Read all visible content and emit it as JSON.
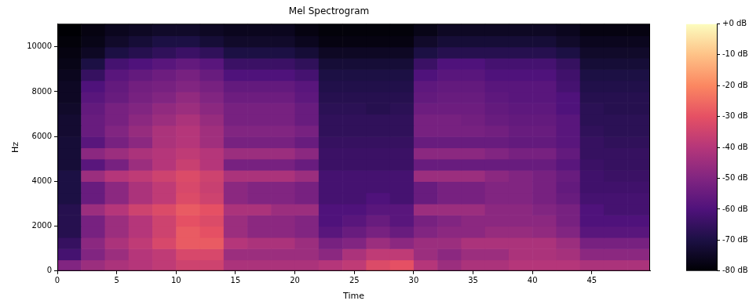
{
  "chart_data": {
    "type": "heatmap",
    "title": "Mel Spectrogram",
    "x_label": "Time",
    "y_label": "Hz",
    "xlim": [
      0,
      49.9
    ],
    "xticks": [
      0,
      5,
      10,
      15,
      20,
      25,
      30,
      35,
      40,
      45
    ],
    "ylim": [
      0,
      11025
    ],
    "yticks": [
      0,
      2000,
      4000,
      6000,
      8000,
      10000
    ],
    "grid": false,
    "x_edges": [
      0,
      2,
      4,
      6,
      8,
      10,
      12,
      14,
      16,
      18,
      20,
      22,
      24,
      26,
      28,
      30,
      32,
      34,
      36,
      38,
      40,
      42,
      44,
      46,
      48,
      49.9
    ],
    "y_edges": [
      0,
      500,
      1000,
      1500,
      2000,
      2500,
      3000,
      3500,
      4000,
      4500,
      5000,
      5500,
      6000,
      6500,
      7000,
      7500,
      8000,
      8500,
      9000,
      9500,
      10000,
      10500,
      11025
    ],
    "values": [
      [
        -50,
        -45,
        -42,
        -40,
        -38,
        -35,
        -35,
        -42,
        -42,
        -42,
        -42,
        -40,
        -38,
        -32,
        -30,
        -40,
        -45,
        -42,
        -42,
        -40,
        -40,
        -40,
        -42,
        -42,
        -42
      ],
      [
        -62,
        -50,
        -45,
        -40,
        -38,
        -33,
        -33,
        -45,
        -45,
        -45,
        -45,
        -48,
        -42,
        -38,
        -38,
        -45,
        -48,
        -45,
        -45,
        -42,
        -42,
        -43,
        -48,
        -48,
        -48
      ],
      [
        -65,
        -48,
        -42,
        -38,
        -33,
        -28,
        -28,
        -40,
        -42,
        -42,
        -45,
        -52,
        -50,
        -45,
        -48,
        -45,
        -45,
        -42,
        -42,
        -42,
        -42,
        -45,
        -52,
        -52,
        -52
      ],
      [
        -68,
        -52,
        -45,
        -40,
        -35,
        -28,
        -30,
        -45,
        -48,
        -48,
        -50,
        -58,
        -55,
        -52,
        -55,
        -50,
        -48,
        -48,
        -46,
        -46,
        -47,
        -50,
        -58,
        -58,
        -58
      ],
      [
        -68,
        -52,
        -45,
        -40,
        -35,
        -30,
        -32,
        -45,
        -48,
        -48,
        -50,
        -60,
        -58,
        -55,
        -58,
        -52,
        -50,
        -48,
        -48,
        -48,
        -48,
        -52,
        -60,
        -60,
        -60
      ],
      [
        -68,
        -45,
        -40,
        -35,
        -32,
        -28,
        -30,
        -42,
        -42,
        -45,
        -45,
        -60,
        -60,
        -58,
        -58,
        -45,
        -45,
        -45,
        -48,
        -48,
        -50,
        -52,
        -60,
        -62,
        -62
      ],
      [
        -70,
        -55,
        -48,
        -42,
        -38,
        -32,
        -35,
        -48,
        -50,
        -50,
        -52,
        -62,
        -62,
        -60,
        -62,
        -55,
        -52,
        -52,
        -50,
        -50,
        -52,
        -55,
        -62,
        -62,
        -62
      ],
      [
        -70,
        -55,
        -48,
        -42,
        -38,
        -33,
        -36,
        -48,
        -50,
        -50,
        -52,
        -62,
        -62,
        -62,
        -62,
        -55,
        -52,
        -52,
        -50,
        -50,
        -52,
        -56,
        -63,
        -63,
        -63
      ],
      [
        -70,
        -45,
        -40,
        -38,
        -35,
        -32,
        -35,
        -42,
        -42,
        -42,
        -45,
        -62,
        -62,
        -62,
        -62,
        -45,
        -45,
        -45,
        -48,
        -50,
        -52,
        -55,
        -63,
        -64,
        -64
      ],
      [
        -72,
        -58,
        -52,
        -45,
        -40,
        -36,
        -40,
        -52,
        -52,
        -52,
        -55,
        -64,
        -64,
        -64,
        -64,
        -55,
        -55,
        -55,
        -55,
        -55,
        -55,
        -58,
        -64,
        -65,
        -65
      ],
      [
        -72,
        -48,
        -45,
        -42,
        -40,
        -38,
        -40,
        -45,
        -45,
        -45,
        -48,
        -64,
        -64,
        -64,
        -64,
        -48,
        -48,
        -48,
        -50,
        -52,
        -52,
        -56,
        -65,
        -65,
        -65
      ],
      [
        -72,
        -58,
        -52,
        -48,
        -42,
        -40,
        -44,
        -52,
        -52,
        -52,
        -55,
        -65,
        -65,
        -65,
        -65,
        -55,
        -55,
        -55,
        -55,
        -56,
        -56,
        -58,
        -65,
        -66,
        -66
      ],
      [
        -73,
        -55,
        -50,
        -46,
        -42,
        -40,
        -44,
        -50,
        -50,
        -50,
        -52,
        -66,
        -66,
        -66,
        -66,
        -52,
        -52,
        -52,
        -53,
        -55,
        -55,
        -58,
        -66,
        -67,
        -67
      ],
      [
        -73,
        -55,
        -52,
        -48,
        -45,
        -42,
        -46,
        -52,
        -52,
        -52,
        -55,
        -66,
        -66,
        -66,
        -66,
        -52,
        -52,
        -53,
        -55,
        -56,
        -56,
        -58,
        -67,
        -67,
        -67
      ],
      [
        -74,
        -56,
        -52,
        -50,
        -47,
        -45,
        -48,
        -52,
        -52,
        -52,
        -55,
        -67,
        -67,
        -68,
        -67,
        -54,
        -54,
        -54,
        -56,
        -57,
        -57,
        -60,
        -67,
        -68,
        -68
      ],
      [
        -75,
        -58,
        -55,
        -52,
        -50,
        -47,
        -50,
        -54,
        -54,
        -54,
        -57,
        -68,
        -68,
        -68,
        -68,
        -56,
        -55,
        -55,
        -57,
        -58,
        -58,
        -60,
        -68,
        -68,
        -68
      ],
      [
        -75,
        -60,
        -56,
        -53,
        -52,
        -50,
        -52,
        -56,
        -56,
        -56,
        -58,
        -69,
        -69,
        -69,
        -69,
        -57,
        -56,
        -56,
        -58,
        -58,
        -58,
        -62,
        -69,
        -69,
        -69
      ],
      [
        -76,
        -65,
        -58,
        -56,
        -54,
        -52,
        -55,
        -60,
        -60,
        -60,
        -62,
        -70,
        -70,
        -70,
        -70,
        -60,
        -58,
        -58,
        -60,
        -60,
        -60,
        -63,
        -70,
        -70,
        -70
      ],
      [
        -77,
        -70,
        -62,
        -60,
        -58,
        -56,
        -58,
        -64,
        -64,
        -64,
        -66,
        -72,
        -72,
        -72,
        -72,
        -64,
        -60,
        -60,
        -62,
        -62,
        -62,
        -65,
        -72,
        -72,
        -72
      ],
      [
        -78,
        -75,
        -70,
        -68,
        -66,
        -64,
        -66,
        -70,
        -70,
        -70,
        -72,
        -75,
        -75,
        -75,
        -75,
        -70,
        -68,
        -68,
        -68,
        -68,
        -68,
        -70,
        -74,
        -74,
        -74
      ],
      [
        -79,
        -77,
        -74,
        -72,
        -70,
        -70,
        -72,
        -74,
        -74,
        -74,
        -76,
        -78,
        -78,
        -78,
        -78,
        -74,
        -72,
        -72,
        -72,
        -72,
        -72,
        -74,
        -76,
        -76,
        -76
      ],
      [
        -80,
        -78,
        -76,
        -75,
        -74,
        -74,
        -75,
        -76,
        -76,
        -76,
        -78,
        -79,
        -79,
        -79,
        -79,
        -77,
        -75,
        -75,
        -75,
        -75,
        -75,
        -76,
        -78,
        -78,
        -78
      ]
    ],
    "colorbar": {
      "range": [
        -80,
        0
      ],
      "ticks": [
        {
          "value": -80,
          "label": "-80 dB"
        },
        {
          "value": -70,
          "label": "-70 dB"
        },
        {
          "value": -60,
          "label": "-60 dB"
        },
        {
          "value": -50,
          "label": "-50 dB"
        },
        {
          "value": -40,
          "label": "-40 dB"
        },
        {
          "value": -30,
          "label": "-30 dB"
        },
        {
          "value": -20,
          "label": "-20 dB"
        },
        {
          "value": -10,
          "label": "-10 dB"
        },
        {
          "value": 0,
          "label": "+0 dB"
        }
      ]
    }
  }
}
